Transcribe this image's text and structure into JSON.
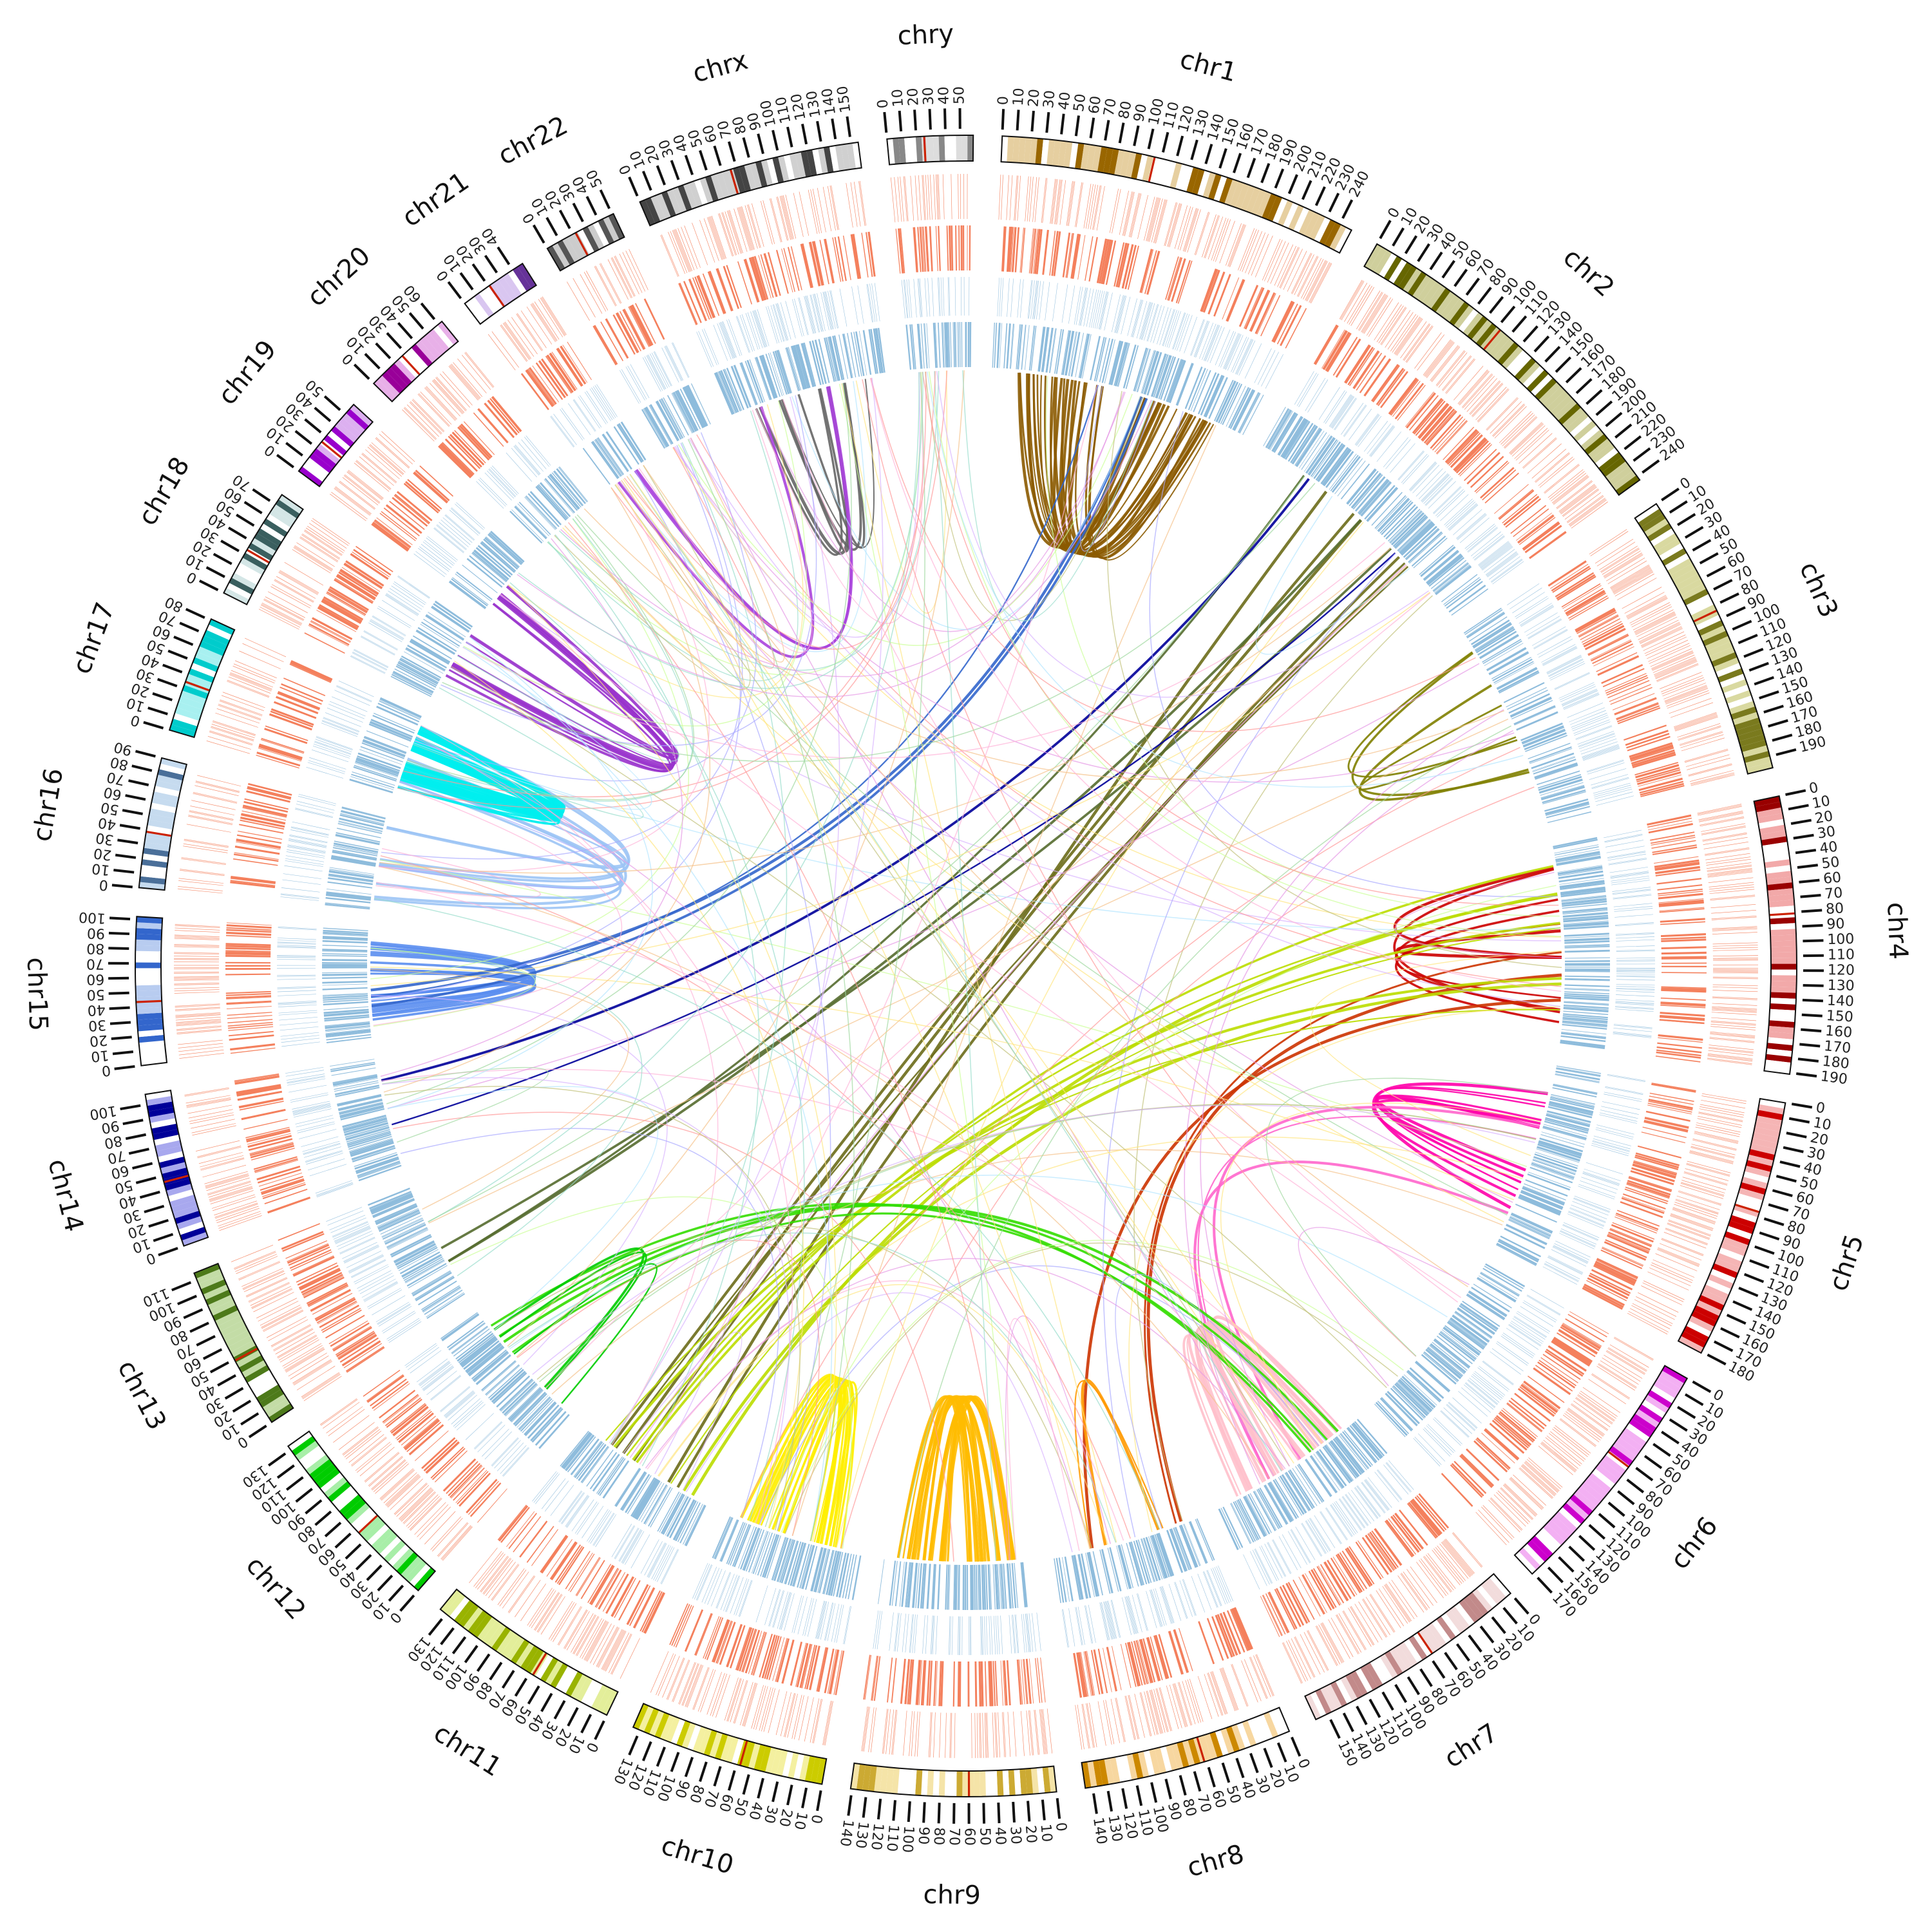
{
  "figure": {
    "chromosomes": [
      {
        "name": "chr1",
        "label": "chr1",
        "length": 249,
        "color": "#996600",
        "light": "#e6cfa0"
      },
      {
        "name": "chr2",
        "label": "chr2",
        "length": 243,
        "color": "#666600",
        "light": "#cfcf9c"
      },
      {
        "name": "chr3",
        "label": "chr3",
        "length": 198,
        "color": "#7a7a1e",
        "light": "#d9d9a0"
      },
      {
        "name": "chr4",
        "label": "chr4",
        "length": 191,
        "color": "#990000",
        "light": "#f2a9a9"
      },
      {
        "name": "chr5",
        "label": "chr5",
        "length": 181,
        "color": "#cc0000",
        "light": "#f5b5b5"
      },
      {
        "name": "chr6",
        "label": "chr6",
        "length": 171,
        "color": "#cc00cc",
        "light": "#f3b0f3"
      },
      {
        "name": "chr7",
        "label": "chr7",
        "length": 159,
        "color": "#c28a8a",
        "light": "#f2dcdc"
      },
      {
        "name": "chr8",
        "label": "chr8",
        "length": 145,
        "color": "#cc8800",
        "light": "#f7d7a0"
      },
      {
        "name": "chr9",
        "label": "chr9",
        "length": 141,
        "color": "#ccaa33",
        "light": "#f5e4a8"
      },
      {
        "name": "chr10",
        "label": "chr10",
        "length": 135,
        "color": "#cccc00",
        "light": "#f4f0a0"
      },
      {
        "name": "chr11",
        "label": "chr11",
        "length": 135,
        "color": "#99b300",
        "light": "#e3ee9a"
      },
      {
        "name": "chr12",
        "label": "chr12",
        "length": 133,
        "color": "#00cc00",
        "light": "#a8eea8"
      },
      {
        "name": "chr13",
        "label": "chr13",
        "length": 115,
        "color": "#4d7a1a",
        "light": "#c3dca6"
      },
      {
        "name": "chr14",
        "label": "chr14",
        "length": 107,
        "color": "#000099",
        "light": "#a8a8ee"
      },
      {
        "name": "chr15",
        "label": "chr15",
        "length": 102,
        "color": "#3366cc",
        "light": "#b8ccf0"
      },
      {
        "name": "chr16",
        "label": "chr16",
        "length": 90,
        "color": "#4a6f99",
        "light": "#c6dbef"
      },
      {
        "name": "chr17",
        "label": "chr17",
        "length": 81,
        "color": "#00cccc",
        "light": "#a8f0f0"
      },
      {
        "name": "chr18",
        "label": "chr18",
        "length": 78,
        "color": "#3a5f5f",
        "light": "#d4e6e6"
      },
      {
        "name": "chr19",
        "label": "chr19",
        "length": 59,
        "color": "#9900cc",
        "light": "#dcb0f0"
      },
      {
        "name": "chr20",
        "label": "chr20",
        "length": 63,
        "color": "#990099",
        "light": "#e8b0e8"
      },
      {
        "name": "chr21",
        "label": "chr21",
        "length": 48,
        "color": "#663399",
        "light": "#d9c6f0"
      },
      {
        "name": "chr22",
        "label": "chr22",
        "length": 51,
        "color": "#555555",
        "light": "#cccccc"
      },
      {
        "name": "chrx",
        "label": "chrx",
        "length": 155,
        "color": "#444444",
        "light": "#d0d0d0"
      },
      {
        "name": "chry",
        "label": "chry",
        "length": 59,
        "color": "#888888",
        "light": "#dddddd"
      }
    ],
    "track_colors": {
      "outer_tracks": "#f4805d",
      "inner_tracks": "#8ebcdc"
    },
    "link_clusters": [
      {
        "from": "chr1",
        "to": "chr1",
        "count": 24,
        "color": "#8b5a00"
      },
      {
        "from": "chr2",
        "to": "chr11",
        "count": 6,
        "color": "#6b6b1a"
      },
      {
        "from": "chr2",
        "to": "chr13",
        "count": 3,
        "color": "#556b2f"
      },
      {
        "from": "chr3",
        "to": "chr3",
        "count": 4,
        "color": "#808000"
      },
      {
        "from": "chr4",
        "to": "chr4",
        "count": 6,
        "color": "#cc0000"
      },
      {
        "from": "chr5",
        "to": "chr5",
        "count": 7,
        "color": "#ff00aa"
      },
      {
        "from": "chr5",
        "to": "chr7",
        "count": 3,
        "color": "#ff66cc"
      },
      {
        "from": "chr7",
        "to": "chr7",
        "count": 16,
        "color": "#ffc0cb"
      },
      {
        "from": "chr4",
        "to": "chr8",
        "count": 3,
        "color": "#cc3300"
      },
      {
        "from": "chr8",
        "to": "chr8",
        "count": 2,
        "color": "#ff9900"
      },
      {
        "from": "chr9",
        "to": "chr9",
        "count": 22,
        "color": "#ffbb00"
      },
      {
        "from": "chr10",
        "to": "chr10",
        "count": 16,
        "color": "#ffee00"
      },
      {
        "from": "chr11",
        "to": "chr4",
        "count": 8,
        "color": "#bbdd00"
      },
      {
        "from": "chr12",
        "to": "chr7",
        "count": 4,
        "color": "#33dd00"
      },
      {
        "from": "chr12",
        "to": "chr12",
        "count": 3,
        "color": "#00cc00"
      },
      {
        "from": "chr15",
        "to": "chr15",
        "count": 12,
        "color": "#5b8ef0"
      },
      {
        "from": "chr16",
        "to": "chr17",
        "count": 8,
        "color": "#9cc4f5"
      },
      {
        "from": "chr17",
        "to": "chr17",
        "count": 26,
        "color": "#00eeee"
      },
      {
        "from": "chr18",
        "to": "chr19",
        "count": 9,
        "color": "#9933cc"
      },
      {
        "from": "chrx",
        "to": "chrx",
        "count": 6,
        "color": "#666666"
      },
      {
        "from": "chrx",
        "to": "chr21",
        "count": 3,
        "color": "#aa44dd"
      },
      {
        "from": "chr14",
        "to": "chr2",
        "count": 2,
        "color": "#000099"
      },
      {
        "from": "chr15",
        "to": "chr1",
        "count": 3,
        "color": "#3366cc"
      },
      {
        "from": "any",
        "to": "any",
        "count": 160,
        "color": "mixed"
      }
    ]
  }
}
